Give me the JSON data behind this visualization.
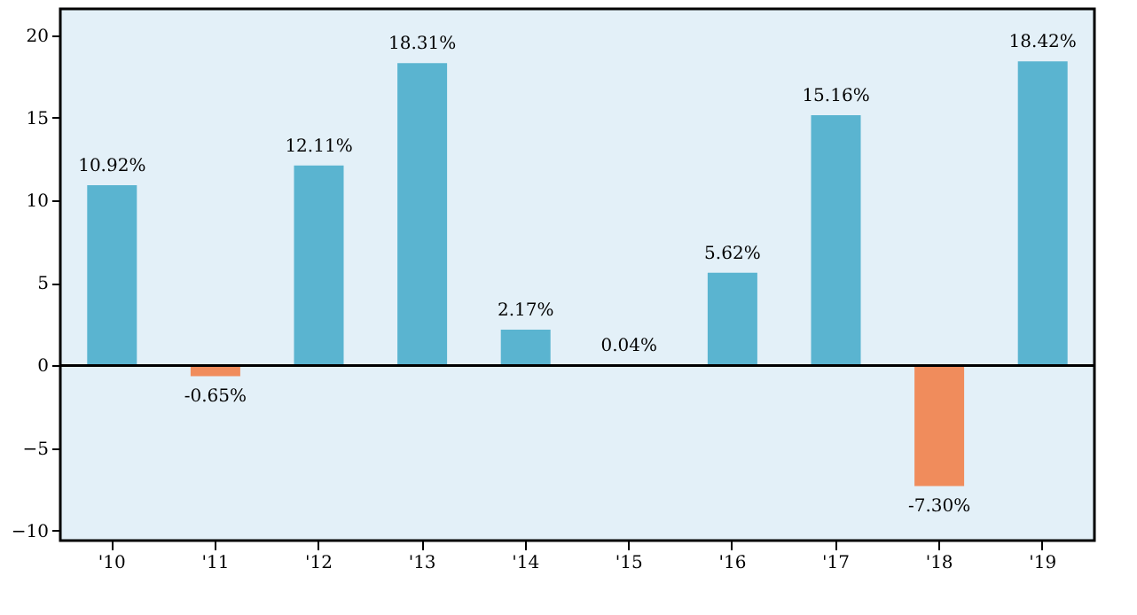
{
  "chart_data": {
    "type": "bar",
    "categories": [
      "'10",
      "'11",
      "'12",
      "'13",
      "'14",
      "'15",
      "'16",
      "'17",
      "'18",
      "'19"
    ],
    "values": [
      10.92,
      -0.65,
      12.11,
      18.31,
      2.17,
      0.04,
      5.62,
      15.16,
      -7.3,
      18.42
    ],
    "value_labels": [
      "10.92%",
      "-0.65%",
      "12.11%",
      "18.31%",
      "2.17%",
      "0.04%",
      "5.62%",
      "15.16%",
      "-7.30%",
      "18.42%"
    ],
    "colors": [
      "#5ab4d0",
      "#f08c5c",
      "#5ab4d0",
      "#5ab4d0",
      "#5ab4d0",
      "#5ab4d0",
      "#5ab4d0",
      "#5ab4d0",
      "#f08c5c",
      "#5ab4d0"
    ],
    "ylim": [
      -10.6,
      21.6
    ],
    "yticks": [
      -10,
      -5,
      0,
      5,
      10,
      15,
      20
    ],
    "ref_lines": [
      {
        "axis": "y",
        "value": 0,
        "color": "#000000"
      }
    ],
    "grid": false
  }
}
